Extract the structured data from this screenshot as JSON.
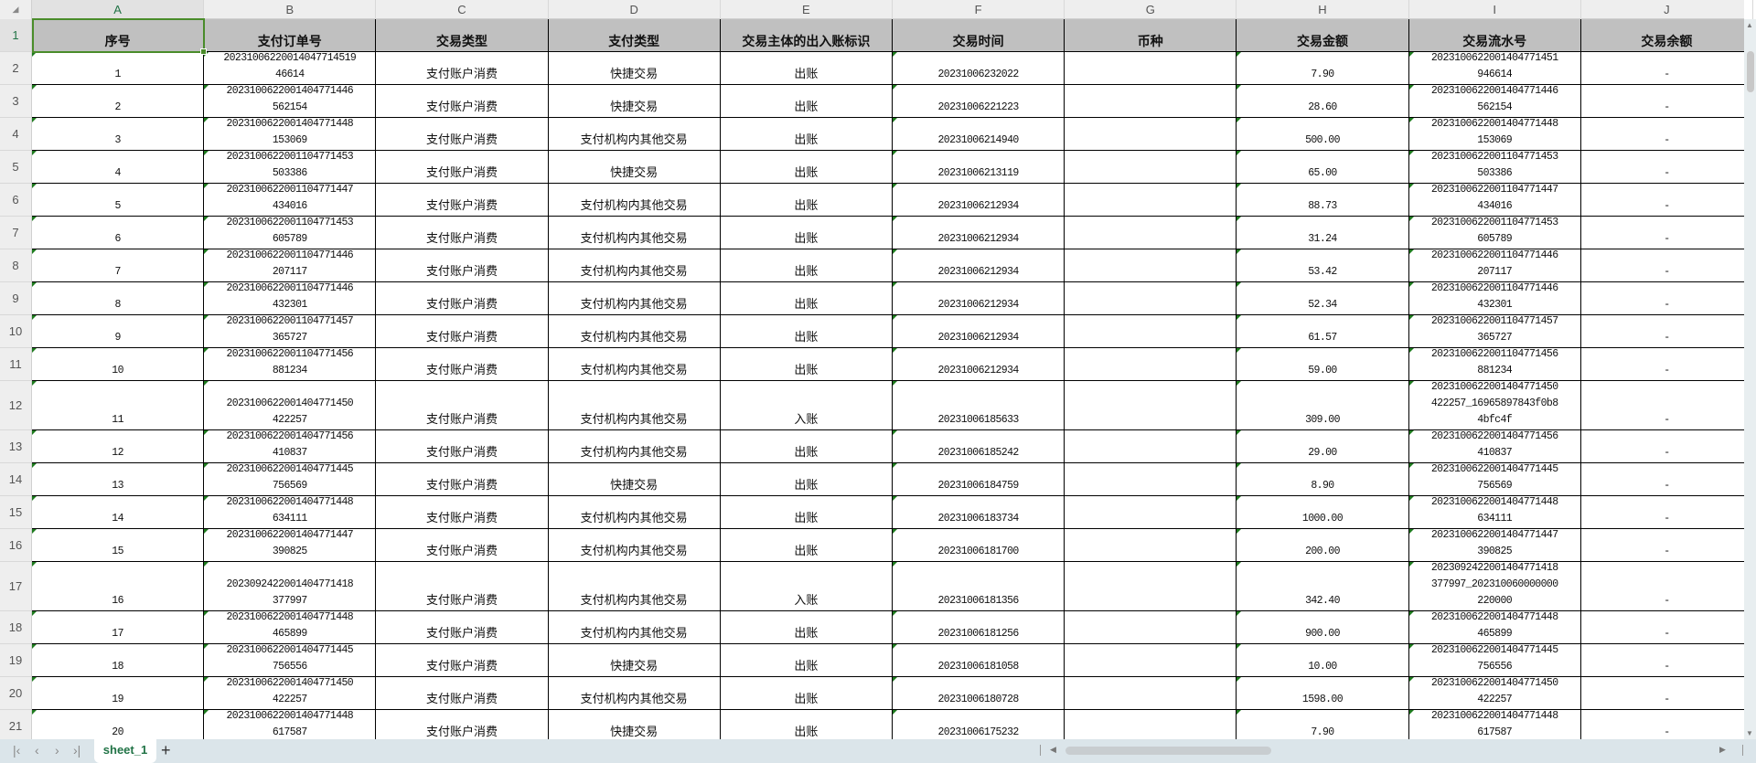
{
  "columns": [
    "A",
    "B",
    "C",
    "D",
    "E",
    "F",
    "G",
    "H",
    "I",
    "J"
  ],
  "headers": [
    "序号",
    "支付订单号",
    "交易类型",
    "支付类型",
    "交易主体的出入账标识",
    "交易时间",
    "币种",
    "交易金额",
    "交易流水号",
    "交易余额"
  ],
  "rows": [
    [
      "1",
      "20231006220014047714519\n46614",
      "支付账户消费",
      "快捷交易",
      "出账",
      "20231006232022",
      "",
      "7.90",
      "2023100622001404771451\n946614",
      "-"
    ],
    [
      "2",
      "2023100622001404771446\n562154",
      "支付账户消费",
      "快捷交易",
      "出账",
      "20231006221223",
      "",
      "28.60",
      "2023100622001404771446\n562154",
      "-"
    ],
    [
      "3",
      "2023100622001404771448\n153069",
      "支付账户消费",
      "支付机构内其他交易",
      "出账",
      "20231006214940",
      "",
      "500.00",
      "2023100622001404771448\n153069",
      "-"
    ],
    [
      "4",
      "2023100622001104771453\n503386",
      "支付账户消费",
      "快捷交易",
      "出账",
      "20231006213119",
      "",
      "65.00",
      "2023100622001104771453\n503386",
      "-"
    ],
    [
      "5",
      "2023100622001104771447\n434016",
      "支付账户消费",
      "支付机构内其他交易",
      "出账",
      "20231006212934",
      "",
      "88.73",
      "2023100622001104771447\n434016",
      "-"
    ],
    [
      "6",
      "2023100622001104771453\n605789",
      "支付账户消费",
      "支付机构内其他交易",
      "出账",
      "20231006212934",
      "",
      "31.24",
      "2023100622001104771453\n605789",
      "-"
    ],
    [
      "7",
      "2023100622001104771446\n207117",
      "支付账户消费",
      "支付机构内其他交易",
      "出账",
      "20231006212934",
      "",
      "53.42",
      "2023100622001104771446\n207117",
      "-"
    ],
    [
      "8",
      "2023100622001104771446\n432301",
      "支付账户消费",
      "支付机构内其他交易",
      "出账",
      "20231006212934",
      "",
      "52.34",
      "2023100622001104771446\n432301",
      "-"
    ],
    [
      "9",
      "2023100622001104771457\n365727",
      "支付账户消费",
      "支付机构内其他交易",
      "出账",
      "20231006212934",
      "",
      "61.57",
      "2023100622001104771457\n365727",
      "-"
    ],
    [
      "10",
      "2023100622001104771456\n881234",
      "支付账户消费",
      "支付机构内其他交易",
      "出账",
      "20231006212934",
      "",
      "59.00",
      "2023100622001104771456\n881234",
      "-"
    ],
    [
      "11",
      "2023100622001404771450\n422257",
      "支付账户消费",
      "支付机构内其他交易",
      "入账",
      "20231006185633",
      "",
      "309.00",
      "2023100622001404771450\n422257_16965897843f0b8\n4bfc4f",
      "-"
    ],
    [
      "12",
      "2023100622001404771456\n410837",
      "支付账户消费",
      "支付机构内其他交易",
      "出账",
      "20231006185242",
      "",
      "29.00",
      "2023100622001404771456\n410837",
      "-"
    ],
    [
      "13",
      "2023100622001404771445\n756569",
      "支付账户消费",
      "快捷交易",
      "出账",
      "20231006184759",
      "",
      "8.90",
      "2023100622001404771445\n756569",
      "-"
    ],
    [
      "14",
      "2023100622001404771448\n634111",
      "支付账户消费",
      "支付机构内其他交易",
      "出账",
      "20231006183734",
      "",
      "1000.00",
      "2023100622001404771448\n634111",
      "-"
    ],
    [
      "15",
      "2023100622001404771447\n390825",
      "支付账户消费",
      "支付机构内其他交易",
      "出账",
      "20231006181700",
      "",
      "200.00",
      "2023100622001404771447\n390825",
      "-"
    ],
    [
      "16",
      "2023092422001404771418\n377997",
      "支付账户消费",
      "支付机构内其他交易",
      "入账",
      "20231006181356",
      "",
      "342.40",
      "2023092422001404771418\n377997_202310060000000\n220000",
      "-"
    ],
    [
      "17",
      "2023100622001404771448\n465899",
      "支付账户消费",
      "支付机构内其他交易",
      "出账",
      "20231006181256",
      "",
      "900.00",
      "2023100622001404771448\n465899",
      "-"
    ],
    [
      "18",
      "2023100622001404771445\n756556",
      "支付账户消费",
      "快捷交易",
      "出账",
      "20231006181058",
      "",
      "10.00",
      "2023100622001404771445\n756556",
      "-"
    ],
    [
      "19",
      "2023100622001404771450\n422257",
      "支付账户消费",
      "支付机构内其他交易",
      "出账",
      "20231006180728",
      "",
      "1598.00",
      "2023100622001404771450\n422257",
      "-"
    ],
    [
      "20",
      "2023100622001404771448\n617587",
      "支付账户消费",
      "快捷交易",
      "出账",
      "20231006175232",
      "",
      "7.90",
      "2023100622001404771448\n617587",
      "-"
    ]
  ],
  "sheet_tabs": [
    {
      "label": "sheet_1",
      "active": true
    }
  ],
  "add_sheet_label": "+",
  "selected_cell": "A1",
  "colors": {
    "header_fill": "#c0c0c0",
    "selection": "#4a8c2a",
    "tab_text": "#217346",
    "bottom_bar": "#dbe5ea"
  }
}
